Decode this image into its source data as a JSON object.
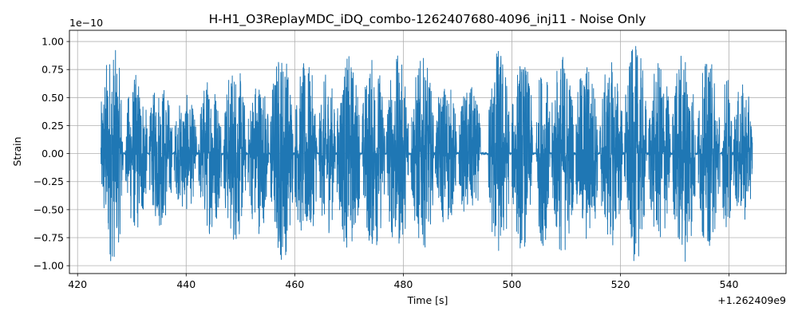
{
  "chart_data": {
    "type": "line",
    "title": "H-H1_O3ReplayMDC_iDQ_combo-1262407680-4096_inj11 - Noise Only",
    "xlabel": "Time [s]",
    "ylabel": "Strain",
    "x_offset_label": "+1.262409e9",
    "y_scale_label": "1e−10",
    "xlim": [
      418.5,
      550.5
    ],
    "ylim": [
      -1.07,
      1.1
    ],
    "x_ticks": [
      420,
      440,
      460,
      480,
      500,
      520,
      540
    ],
    "x_tick_labels": [
      "420",
      "440",
      "460",
      "480",
      "500",
      "520",
      "540"
    ],
    "y_ticks": [
      -1.0,
      -0.75,
      -0.5,
      -0.25,
      0.0,
      0.25,
      0.5,
      0.75,
      1.0
    ],
    "y_tick_labels": [
      "−1.00",
      "−0.75",
      "−0.50",
      "−0.25",
      "0.00",
      "0.25",
      "0.50",
      "0.75",
      "1.00"
    ],
    "grid": true,
    "series": [
      {
        "color": "#1f77b4",
        "x_range": [
          424.3,
          544.3
        ],
        "bursts": [
          {
            "start": 424.3,
            "end": 428.4,
            "amp": 0.98
          },
          {
            "start": 428.8,
            "end": 432.8,
            "amp": 0.72
          },
          {
            "start": 433.2,
            "end": 437.4,
            "amp": 0.67
          },
          {
            "start": 437.8,
            "end": 441.9,
            "amp": 0.53
          },
          {
            "start": 442.3,
            "end": 446.5,
            "amp": 0.72
          },
          {
            "start": 446.9,
            "end": 451.0,
            "amp": 0.82
          },
          {
            "start": 451.4,
            "end": 455.2,
            "amp": 0.72
          },
          {
            "start": 455.5,
            "end": 459.7,
            "amp": 0.97
          },
          {
            "start": 460.0,
            "end": 464.1,
            "amp": 0.83
          },
          {
            "start": 464.5,
            "end": 467.5,
            "amp": 0.73
          },
          {
            "start": 467.8,
            "end": 472.0,
            "amp": 0.88
          },
          {
            "start": 472.4,
            "end": 476.6,
            "amp": 0.88
          },
          {
            "start": 476.9,
            "end": 481.0,
            "amp": 0.88
          },
          {
            "start": 481.4,
            "end": 485.6,
            "amp": 0.86
          },
          {
            "start": 485.9,
            "end": 489.8,
            "amp": 0.66
          },
          {
            "start": 490.2,
            "end": 494.2,
            "amp": 0.61
          },
          {
            "start": 495.7,
            "end": 499.5,
            "amp": 0.98
          },
          {
            "start": 500.0,
            "end": 503.8,
            "amp": 0.87
          },
          {
            "start": 504.5,
            "end": 507.0,
            "amp": 0.83
          },
          {
            "start": 507.3,
            "end": 511.4,
            "amp": 0.92
          },
          {
            "start": 511.8,
            "end": 515.8,
            "amp": 0.85
          },
          {
            "start": 516.2,
            "end": 520.4,
            "amp": 0.83
          },
          {
            "start": 520.7,
            "end": 524.8,
            "amp": 0.97
          },
          {
            "start": 525.2,
            "end": 529.2,
            "amp": 0.82
          },
          {
            "start": 529.6,
            "end": 533.8,
            "amp": 0.97
          },
          {
            "start": 534.2,
            "end": 538.3,
            "amp": 0.85
          },
          {
            "start": 538.7,
            "end": 540.5,
            "amp": 0.74
          },
          {
            "start": 540.8,
            "end": 544.3,
            "amp": 0.62
          }
        ]
      }
    ]
  }
}
